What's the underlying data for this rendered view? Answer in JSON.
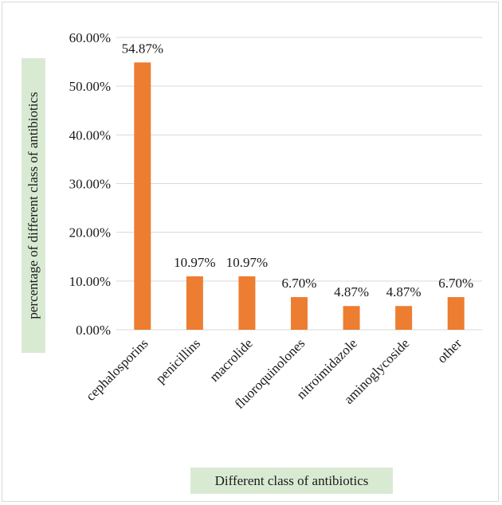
{
  "chart_data": {
    "type": "bar",
    "categories": [
      "cephalosporins",
      "penicillins",
      "macrolide",
      "fluoroquinolones",
      "nitroimidazole",
      "aminoglycoside",
      "other"
    ],
    "values": [
      54.87,
      10.97,
      10.97,
      6.7,
      4.87,
      4.87,
      6.7
    ],
    "data_labels": [
      "54.87%",
      "10.97%",
      "10.97%",
      "6.70%",
      "4.87%",
      "4.87%",
      "6.70%"
    ],
    "ylim": [
      0,
      60
    ],
    "yticks": [
      0,
      10,
      20,
      30,
      40,
      50,
      60
    ],
    "ytick_labels": [
      "0.00%",
      "10.00%",
      "20.00%",
      "30.00%",
      "40.00%",
      "50.00%",
      "60.00%"
    ],
    "xlabel": "Different class of antibiotics",
    "ylabel": "percentage of different class of antibiotics",
    "grid": true,
    "legend": false,
    "colors": {
      "bar": "#ed7d31",
      "grid": "#d9d9d9",
      "axis_title_bg": "#d9ead3"
    }
  }
}
